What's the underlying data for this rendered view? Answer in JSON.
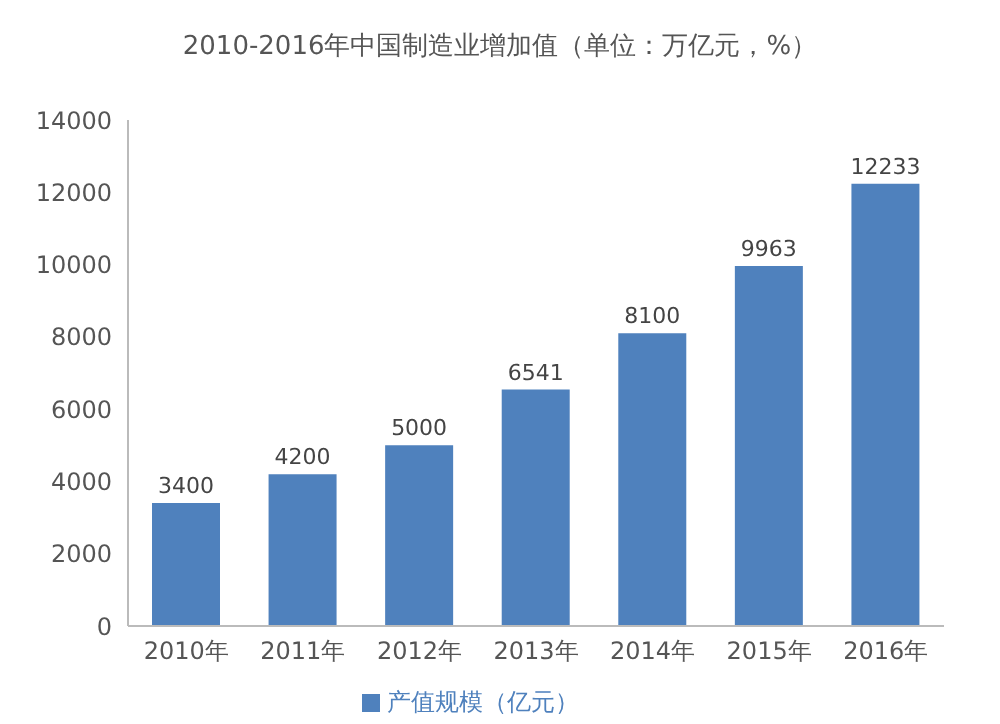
{
  "chart_data": {
    "type": "bar",
    "title": "2010-2016年中国制造业增加值（单位：万亿元，%）",
    "categories": [
      "2010年",
      "2011年",
      "2012年",
      "2013年",
      "2014年",
      "2015年",
      "2016年"
    ],
    "series": [
      {
        "name": "产值规模（亿元）",
        "color": "#4f81bd",
        "values": [
          3400,
          4200,
          5000,
          6541,
          8100,
          9963,
          12233
        ]
      }
    ],
    "ylim": [
      0,
      14000
    ],
    "yticks": [
      0,
      2000,
      4000,
      6000,
      8000,
      10000,
      12000,
      14000
    ],
    "data_labels": true,
    "legend": "bottom"
  }
}
